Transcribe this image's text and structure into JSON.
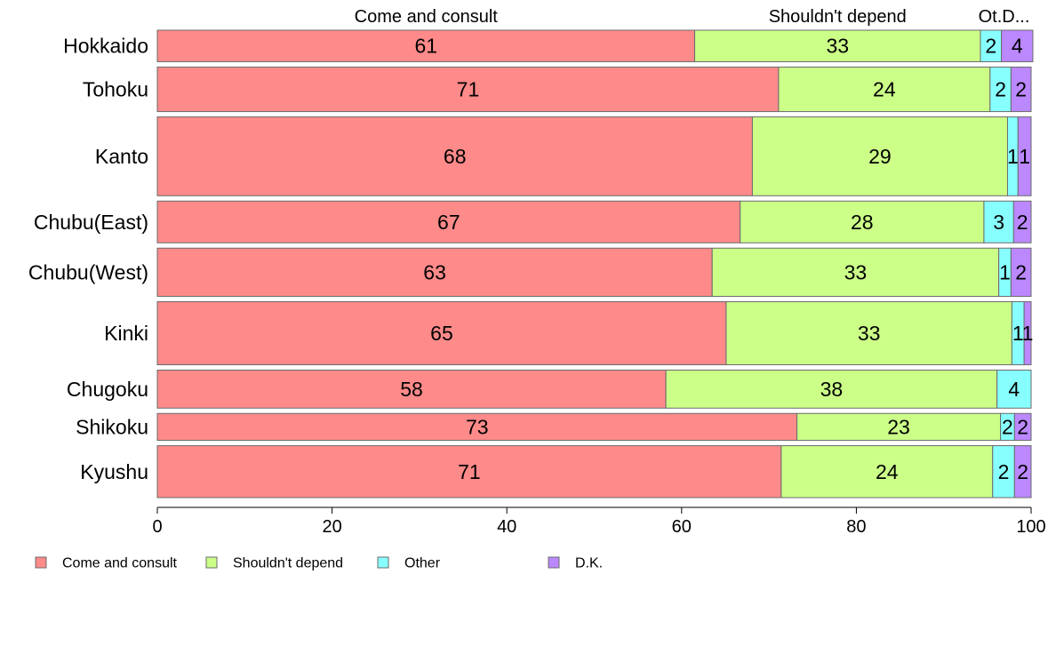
{
  "chart_data": {
    "type": "bar",
    "orientation": "horizontal",
    "stacked": true,
    "bar_width": "variable",
    "column_headers": [
      "Come and consult",
      "Shouldn't depend",
      "Ot.D..."
    ],
    "categories": [
      "Hokkaido",
      "Tohoku",
      "Kanto",
      "Chubu(East)",
      "Chubu(West)",
      "Kinki",
      "Chugoku",
      "Shikoku",
      "Kyushu"
    ],
    "series": [
      {
        "name": "Come and consult",
        "color": "#FF8A8A",
        "values": [
          61.5,
          71.1,
          68.1,
          66.7,
          63.5,
          65.1,
          58.2,
          73.2,
          71.4
        ],
        "labels": [
          "61",
          "71",
          "68",
          "67",
          "63",
          "65",
          "58",
          "73",
          "71"
        ]
      },
      {
        "name": "Shouldn't depend",
        "color": "#CCFF88",
        "values": [
          32.7,
          24.2,
          29.2,
          27.9,
          32.8,
          32.7,
          37.9,
          23.3,
          24.2
        ],
        "labels": [
          "33",
          "24",
          "29",
          "28",
          "33",
          "33",
          "38",
          "23",
          "24"
        ]
      },
      {
        "name": "Other",
        "color": "#88FFFF",
        "values": [
          2.4,
          2.4,
          1.2,
          3.4,
          1.4,
          1.4,
          3.9,
          1.6,
          2.5
        ],
        "labels": [
          "2",
          "2",
          "1",
          "3",
          "1",
          "1",
          "4",
          "2",
          "2"
        ]
      },
      {
        "name": "D.K.",
        "color": "#BB88FF",
        "values": [
          3.6,
          2.3,
          1.5,
          2.0,
          2.3,
          0.8,
          0.0,
          1.9,
          1.9
        ],
        "labels": [
          "4",
          "2",
          "1",
          "2",
          "2",
          "1",
          "",
          "2",
          "2"
        ]
      }
    ],
    "row_weights": [
      34,
      48,
      85,
      45,
      52,
      68,
      41,
      29,
      56
    ],
    "xlim": [
      0,
      100
    ],
    "xticks": [
      "0",
      "20",
      "40",
      "60",
      "80",
      "100"
    ],
    "grid": false,
    "legend_position": "bottom-left",
    "title": "",
    "xlabel": "",
    "ylabel": ""
  }
}
